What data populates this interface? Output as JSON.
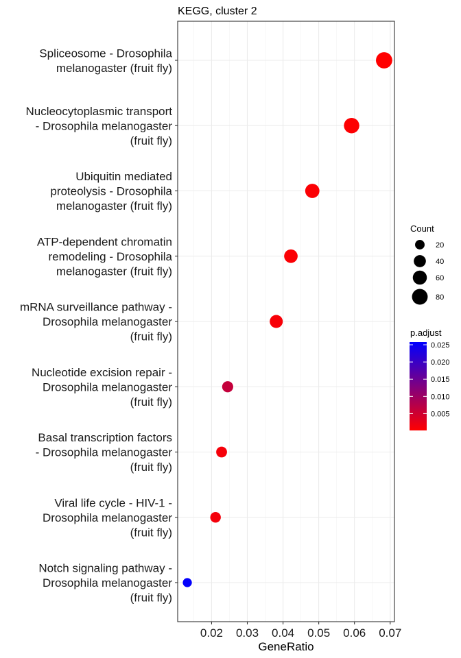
{
  "chart_data": {
    "type": "scatter",
    "title": "KEGG, cluster 2",
    "xlabel": "GeneRatio",
    "ylabel": "",
    "xlim": [
      0.0105,
      0.0712
    ],
    "x_ticks": [
      0.02,
      0.03,
      0.04,
      0.05,
      0.06,
      0.07
    ],
    "x_tick_labels": [
      "0.02",
      "0.03",
      "0.04",
      "0.05",
      "0.06",
      "0.07"
    ],
    "grid": true,
    "points": [
      {
        "term_lines": [
          "Spliceosome - Drosophila",
          "melanogaster (fruit fly)"
        ],
        "x": 0.0683,
        "count": 88,
        "p_adjust": 0.0001
      },
      {
        "term_lines": [
          "Nucleocytoplasmic transport",
          "- Drosophila melanogaster",
          "(fruit fly)"
        ],
        "x": 0.0592,
        "count": 76,
        "p_adjust": 0.0003
      },
      {
        "term_lines": [
          "Ubiquitin mediated",
          "proteolysis - Drosophila",
          "melanogaster (fruit fly)"
        ],
        "x": 0.0482,
        "count": 62,
        "p_adjust": 0.0005
      },
      {
        "term_lines": [
          "ATP-dependent chromatin",
          "remodeling - Drosophila",
          "melanogaster (fruit fly)"
        ],
        "x": 0.0422,
        "count": 54,
        "p_adjust": 0.0005
      },
      {
        "term_lines": [
          "mRNA surveillance pathway -",
          "Drosophila melanogaster",
          "(fruit fly)"
        ],
        "x": 0.0381,
        "count": 49,
        "p_adjust": 0.0008
      },
      {
        "term_lines": [
          "Nucleotide excision repair -",
          "Drosophila melanogaster",
          "(fruit fly)"
        ],
        "x": 0.0245,
        "count": 31,
        "p_adjust": 0.006
      },
      {
        "term_lines": [
          "Basal transcription factors",
          "- Drosophila melanogaster",
          "(fruit fly)"
        ],
        "x": 0.0228,
        "count": 29,
        "p_adjust": 0.001
      },
      {
        "term_lines": [
          "Viral life cycle - HIV-1 -",
          "Drosophila melanogaster",
          "(fruit fly)"
        ],
        "x": 0.0211,
        "count": 27,
        "p_adjust": 0.0012
      },
      {
        "term_lines": [
          "Notch signaling pathway -",
          "Drosophila melanogaster",
          "(fruit fly)"
        ],
        "x": 0.0132,
        "count": 17,
        "p_adjust": 0.0255
      }
    ],
    "size_legend": {
      "title": "Count",
      "values": [
        20,
        40,
        60,
        80
      ],
      "labels": [
        "20",
        "40",
        "60",
        "80"
      ]
    },
    "color_legend": {
      "title": "p.adjust",
      "min": 0.0001,
      "max": 0.0258,
      "ticks": [
        0.005,
        0.01,
        0.015,
        0.02,
        0.025
      ],
      "labels": [
        "0.005",
        "0.010",
        "0.015",
        "0.020",
        "0.025"
      ],
      "low_color": "#ff0000",
      "high_color": "#0000ff"
    }
  }
}
